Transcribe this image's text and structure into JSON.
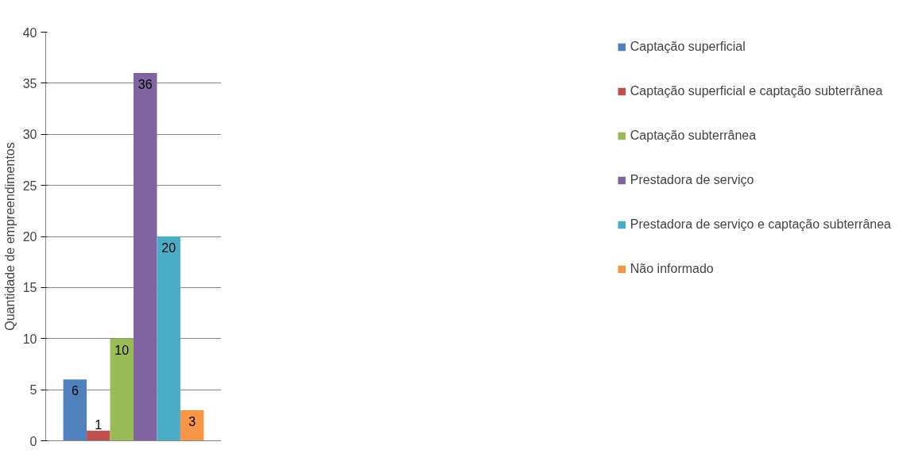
{
  "chart_data": {
    "type": "bar",
    "ylabel": "Quantidade de empreendimentos",
    "categories": [
      null
    ],
    "series": [
      {
        "name": "Captação superficial",
        "color": "#4f81bd",
        "values": [
          6
        ]
      },
      {
        "name": "Captação superficial e captação subterrânea",
        "color": "#c0504d",
        "values": [
          1
        ]
      },
      {
        "name": "Captação subterrânea",
        "color": "#9bbb59",
        "values": [
          10
        ]
      },
      {
        "name": "Prestadora de serviço",
        "color": "#8064a2",
        "values": [
          36
        ]
      },
      {
        "name": "Prestadora de serviço e captação subterrânea",
        "color": "#4bacc6",
        "values": [
          20
        ]
      },
      {
        "name": "Não informado",
        "color": "#f79646",
        "values": [
          3
        ]
      }
    ],
    "ylim": [
      0,
      40
    ],
    "yticks": [
      0,
      5,
      10,
      15,
      20,
      25,
      30,
      35,
      40
    ],
    "grid": "y",
    "legend": "right",
    "data_labels": true
  }
}
